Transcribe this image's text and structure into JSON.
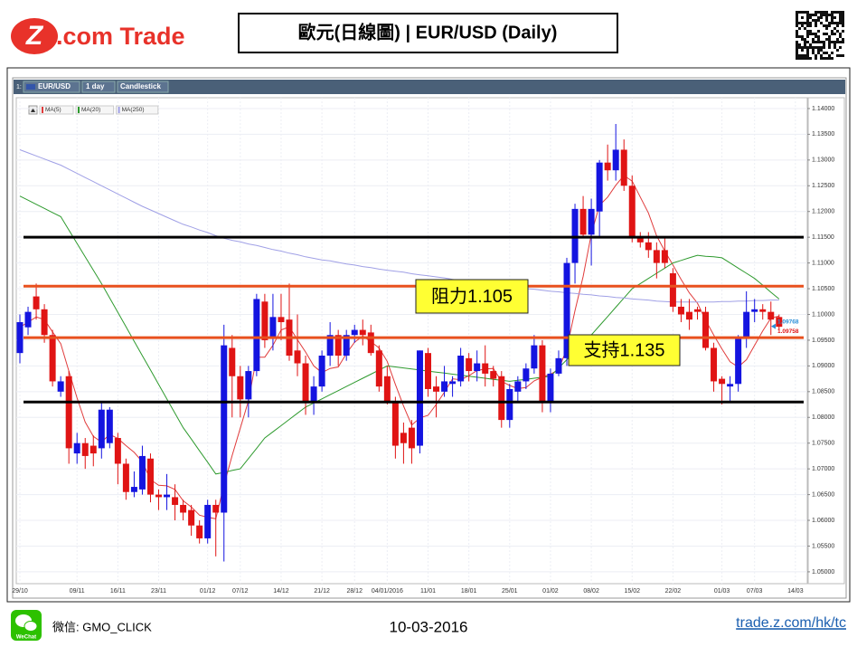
{
  "header": {
    "logo_mark": "Z",
    "logo_text": ".com Trade",
    "title": "歐元(日線圖) | EUR/USD (Daily)"
  },
  "chart_data": {
    "type": "candlestick",
    "toolbar": {
      "index": "1:",
      "symbol": "EUR/USD",
      "interval": "1 day",
      "style": "Candlestick"
    },
    "categories": [
      "29/10",
      null,
      null,
      null,
      null,
      null,
      null,
      "09/11",
      null,
      null,
      null,
      null,
      "16/11",
      null,
      null,
      null,
      null,
      "23/11",
      null,
      null,
      null,
      null,
      null,
      "01/12",
      null,
      null,
      null,
      "07/12",
      null,
      null,
      null,
      null,
      "14/12",
      null,
      null,
      null,
      null,
      "21/12",
      null,
      null,
      null,
      "28/12",
      null,
      null,
      null,
      "04/01/2016",
      null,
      null,
      null,
      null,
      "11/01",
      null,
      null,
      null,
      null,
      "18/01",
      null,
      null,
      null,
      null,
      "25/01",
      null,
      null,
      null,
      null,
      "01/02",
      null,
      null,
      null,
      null,
      "08/02",
      null,
      null,
      null,
      null,
      "15/02",
      null,
      null,
      null,
      null,
      "22/02",
      null,
      null,
      null,
      null,
      null,
      "01/03",
      null,
      null,
      null,
      "07/03",
      null,
      null,
      null,
      null,
      "14/03"
    ],
    "open": [
      1.0925,
      1.0975,
      1.1035,
      1.101,
      1.096,
      1.085,
      1.088,
      1.073,
      1.075,
      1.0745,
      1.074,
      1.075,
      1.076,
      1.071,
      1.0655,
      1.066,
      1.072,
      1.065,
      1.0645,
      1.0645,
      1.063,
      1.062,
      1.059,
      1.0565,
      1.063,
      1.0615,
      1.0935,
      1.088,
      1.0835,
      1.089,
      1.1025,
      1.0955,
      1.0995,
      1.099,
      1.093,
      1.0905,
      1.083,
      1.086,
      1.092,
      1.096,
      1.092,
      1.096,
      1.097,
      1.0965,
      1.093,
      1.088,
      1.083,
      1.077,
      1.078,
      1.0745,
      1.0925,
      1.086,
      1.085,
      1.0865,
      1.087,
      1.0915,
      1.089,
      1.0905,
      1.089,
      1.088,
      1.0795,
      1.085,
      1.087,
      1.0895,
      1.094,
      1.083,
      1.0885,
      1.0915,
      1.11,
      1.1205,
      1.1155,
      1.12,
      1.1295,
      1.128,
      1.132,
      1.125,
      1.115,
      1.114,
      1.1125,
      1.1125,
      1.108,
      1.1015,
      1.1005,
      1.101,
      1.1005,
      1.0935,
      1.0875,
      1.086,
      1.0865,
      1.0955,
      1.1005,
      1.101,
      1.1005,
      1.0995,
      null,
      null
    ],
    "high": [
      1.1,
      1.1015,
      1.106,
      1.102,
      1.097,
      1.088,
      1.089,
      1.077,
      1.076,
      1.0765,
      1.083,
      1.082,
      1.077,
      1.072,
      1.0695,
      1.0745,
      1.073,
      1.066,
      1.069,
      1.067,
      1.064,
      1.063,
      1.06,
      1.064,
      1.064,
      1.098,
      1.096,
      1.09,
      1.09,
      1.104,
      1.104,
      1.104,
      1.104,
      1.106,
      1.1,
      1.092,
      1.088,
      1.093,
      1.0985,
      1.097,
      1.097,
      1.098,
      1.099,
      1.098,
      1.094,
      1.09,
      1.084,
      1.079,
      1.0795,
      1.093,
      1.0935,
      1.088,
      1.09,
      1.088,
      1.0935,
      1.0925,
      1.093,
      1.094,
      1.09,
      1.089,
      1.0865,
      1.088,
      1.0905,
      1.096,
      1.095,
      1.0895,
      1.093,
      1.111,
      1.1215,
      1.123,
      1.1225,
      1.13,
      1.133,
      1.137,
      1.134,
      1.127,
      1.116,
      1.116,
      1.114,
      1.115,
      1.109,
      1.103,
      1.103,
      1.1015,
      1.1015,
      1.0945,
      1.088,
      1.088,
      1.096,
      1.1045,
      1.103,
      1.102,
      1.1025,
      1.1,
      null,
      null
    ],
    "low": [
      1.0905,
      1.096,
      1.099,
      1.0945,
      1.086,
      1.084,
      1.071,
      1.071,
      1.07,
      1.0705,
      1.072,
      1.074,
      1.067,
      1.064,
      1.0645,
      1.065,
      1.0635,
      1.062,
      1.062,
      1.06,
      1.06,
      1.057,
      1.0555,
      1.0555,
      1.053,
      1.052,
      1.08,
      1.08,
      1.08,
      1.088,
      1.0935,
      1.093,
      1.095,
      1.091,
      1.088,
      1.0805,
      1.0805,
      1.085,
      1.09,
      1.09,
      1.091,
      1.0945,
      1.094,
      1.092,
      1.085,
      1.0825,
      1.072,
      1.071,
      1.071,
      1.073,
      1.084,
      1.08,
      1.084,
      1.084,
      1.086,
      1.087,
      1.087,
      1.086,
      1.086,
      1.078,
      1.078,
      1.083,
      1.0855,
      1.0885,
      1.081,
      1.081,
      1.088,
      1.09,
      1.106,
      1.115,
      1.1095,
      1.115,
      1.126,
      1.126,
      1.124,
      1.114,
      1.113,
      1.111,
      1.107,
      1.109,
      1.1005,
      1.0985,
      1.097,
      1.099,
      1.093,
      1.085,
      1.0825,
      1.083,
      1.085,
      1.0935,
      1.0985,
      1.099,
      1.096,
      1.097,
      null,
      null
    ],
    "close": [
      1.0985,
      1.1005,
      1.101,
      1.096,
      1.087,
      1.087,
      1.074,
      1.075,
      1.0725,
      1.073,
      1.0815,
      1.0815,
      1.071,
      1.0655,
      1.0665,
      1.0725,
      1.065,
      1.0645,
      1.065,
      1.063,
      1.0615,
      1.059,
      1.0565,
      1.063,
      1.0615,
      1.094,
      1.088,
      1.0835,
      1.089,
      1.103,
      1.095,
      1.0995,
      1.0985,
      1.092,
      1.0905,
      1.083,
      1.086,
      1.092,
      1.096,
      1.092,
      1.096,
      1.097,
      1.096,
      1.0925,
      1.086,
      1.083,
      1.0745,
      1.075,
      1.074,
      1.093,
      1.0855,
      1.085,
      1.087,
      1.087,
      1.092,
      1.089,
      1.0905,
      1.0885,
      1.0875,
      1.0795,
      1.0855,
      1.087,
      1.0895,
      1.094,
      1.083,
      1.0885,
      1.0915,
      1.11,
      1.1205,
      1.1155,
      1.1205,
      1.1295,
      1.128,
      1.132,
      1.125,
      1.115,
      1.114,
      1.1125,
      1.11,
      1.11,
      1.1015,
      1.1,
      1.099,
      1.1005,
      1.0935,
      1.087,
      1.0865,
      1.0865,
      1.0955,
      1.1005,
      1.101,
      1.1005,
      1.099,
      1.0976,
      null,
      null
    ],
    "up_color": "#1414e0",
    "down_color": "#e01414",
    "series": [
      {
        "name": "MA(5)",
        "color": "#e03c3c",
        "values": [
          1.0975,
          1.0985,
          1.0995,
          1.099,
          1.0966,
          1.0943,
          1.089,
          1.0838,
          1.0791,
          1.0763,
          1.0752,
          1.0767,
          1.0759,
          1.0745,
          1.0732,
          1.0714,
          1.0679,
          1.0668,
          1.0667,
          1.066,
          1.0638,
          1.0626,
          1.061,
          1.0606,
          1.0603,
          1.0668,
          1.0726,
          1.0779,
          1.0832,
          1.0917,
          1.0917,
          1.094,
          1.097,
          1.0976,
          1.0951,
          1.0927,
          1.09,
          1.0887,
          1.0895,
          1.0898,
          1.0924,
          1.0946,
          1.0958,
          1.0947,
          1.0935,
          1.0909,
          1.0864,
          1.0822,
          1.0785,
          1.0799,
          1.0804,
          1.0825,
          1.0849,
          1.0875,
          1.0873,
          1.0881,
          1.0891,
          1.0894,
          1.0895,
          1.087,
          1.0862,
          1.0856,
          1.0858,
          1.0871,
          1.0878,
          1.0884,
          1.0893,
          1.0934,
          1.1007,
          1.1074,
          1.1156,
          1.1212,
          1.1228,
          1.1251,
          1.127,
          1.1259,
          1.1228,
          1.1197,
          1.1153,
          1.1123,
          1.1096,
          1.1068,
          1.1042,
          1.1022,
          1.0989,
          1.096,
          1.0933,
          1.0908,
          1.0898,
          1.0912,
          1.094,
          1.0968,
          1.0993,
          1.0997,
          null,
          null
        ]
      },
      {
        "name": "MA(20)",
        "color": "#2e9a2e",
        "values": [
          1.123,
          1.1222,
          1.1214,
          1.1206,
          1.1198,
          1.119,
          1.1164,
          1.1138,
          1.1112,
          1.1086,
          1.106,
          1.1032,
          1.1004,
          1.0976,
          1.0948,
          1.092,
          1.0892,
          1.0864,
          1.0836,
          1.0808,
          1.078,
          1.0758,
          1.0735,
          1.0713,
          1.069,
          1.0693,
          1.0697,
          1.07,
          1.072,
          1.074,
          1.076,
          1.0772,
          1.0784,
          1.0796,
          1.0808,
          1.082,
          1.0828,
          1.0836,
          1.0844,
          1.0852,
          1.086,
          1.0868,
          1.0876,
          1.0884,
          1.0892,
          1.09,
          1.0898,
          1.0896,
          1.0894,
          1.0892,
          1.089,
          1.0888,
          1.0886,
          1.0884,
          1.0882,
          1.088,
          1.0878,
          1.0876,
          1.0874,
          1.0872,
          1.087,
          1.0872,
          1.0874,
          1.0876,
          1.0878,
          1.088,
          1.0896,
          1.0912,
          1.0928,
          1.0944,
          1.096,
          1.0978,
          1.0996,
          1.1014,
          1.1032,
          1.105,
          1.106,
          1.107,
          1.108,
          1.109,
          1.11,
          1.1105,
          1.111,
          1.1115,
          1.1113,
          1.1112,
          1.111,
          1.11,
          1.109,
          1.108,
          1.107,
          1.1057,
          1.1043,
          1.103,
          null,
          null
        ]
      },
      {
        "name": "MA(250)",
        "color": "#a0a0e6",
        "values": [
          1.132,
          1.1314,
          1.1308,
          1.1302,
          1.1296,
          1.129,
          1.1282,
          1.1274,
          1.1266,
          1.1258,
          1.125,
          1.1242,
          1.1234,
          1.1226,
          1.1218,
          1.121,
          1.1203,
          1.1196,
          1.1189,
          1.1182,
          1.1175,
          1.117,
          1.1164,
          1.1159,
          1.1153,
          1.1148,
          1.1144,
          1.1141,
          1.1137,
          1.1134,
          1.113,
          1.1126,
          1.1123,
          1.1119,
          1.1116,
          1.1112,
          1.1109,
          1.1106,
          1.1104,
          1.1101,
          1.1098,
          1.1096,
          1.1093,
          1.1091,
          1.1088,
          1.1086,
          1.1084,
          1.1082,
          1.1079,
          1.1077,
          1.1075,
          1.1073,
          1.1071,
          1.1068,
          1.1066,
          1.1064,
          1.1062,
          1.106,
          1.1058,
          1.1056,
          1.1054,
          1.1052,
          1.105,
          1.1049,
          1.1047,
          1.1045,
          1.1044,
          1.1042,
          1.1041,
          1.1039,
          1.1038,
          1.1036,
          1.1035,
          1.1033,
          1.1032,
          1.103,
          1.1029,
          1.1028,
          1.1026,
          1.1025,
          1.1024,
          1.1024,
          1.1024,
          1.1024,
          1.1024,
          1.1024,
          1.1025,
          1.1025,
          1.1026,
          1.1026,
          1.1027,
          1.1027,
          1.1028,
          1.1028,
          null,
          null
        ]
      }
    ],
    "ylim": [
      1.0477,
      1.1421
    ],
    "yticks": [
      {
        "value": 1.05,
        "label": "1.05000"
      },
      {
        "value": 1.055,
        "label": "1.05500"
      },
      {
        "value": 1.06,
        "label": "1.06000"
      },
      {
        "value": 1.065,
        "label": "1.06500"
      },
      {
        "value": 1.07,
        "label": "1.07000"
      },
      {
        "value": 1.075,
        "label": "1.07500"
      },
      {
        "value": 1.08,
        "label": "1.08000"
      },
      {
        "value": 1.085,
        "label": "1.08500"
      },
      {
        "value": 1.09,
        "label": "1.09000"
      },
      {
        "value": 1.095,
        "label": "1.09500"
      },
      {
        "value": 1.1,
        "label": "1.10000"
      },
      {
        "value": 1.105,
        "label": "1.10500"
      },
      {
        "value": 1.11,
        "label": "1.11000"
      },
      {
        "value": 1.115,
        "label": "1.11500"
      },
      {
        "value": 1.12,
        "label": "1.12000"
      },
      {
        "value": 1.125,
        "label": "1.12500"
      },
      {
        "value": 1.13,
        "label": "1.13000"
      },
      {
        "value": 1.135,
        "label": "1.13500"
      },
      {
        "value": 1.14,
        "label": "1.14000"
      }
    ],
    "grid": true,
    "reference_lines": [
      {
        "value": 1.115,
        "color": "#000000"
      },
      {
        "value": 1.083,
        "color": "#000000"
      },
      {
        "value": 1.1055,
        "color": "#e8501e"
      },
      {
        "value": 1.0955,
        "color": "#e8501e"
      }
    ],
    "annotations": [
      "阻力1.105",
      "支持1.135"
    ],
    "price_labels": [
      {
        "value": 1.09768,
        "color": "#2a8fd8"
      },
      {
        "value": 1.09758,
        "color": "#e01414"
      }
    ]
  },
  "footer": {
    "wechat": "WeChat",
    "contact": "微信: GMO_CLICK",
    "date": "10-03-2016",
    "url": "trade.z.com/hk/tc"
  }
}
